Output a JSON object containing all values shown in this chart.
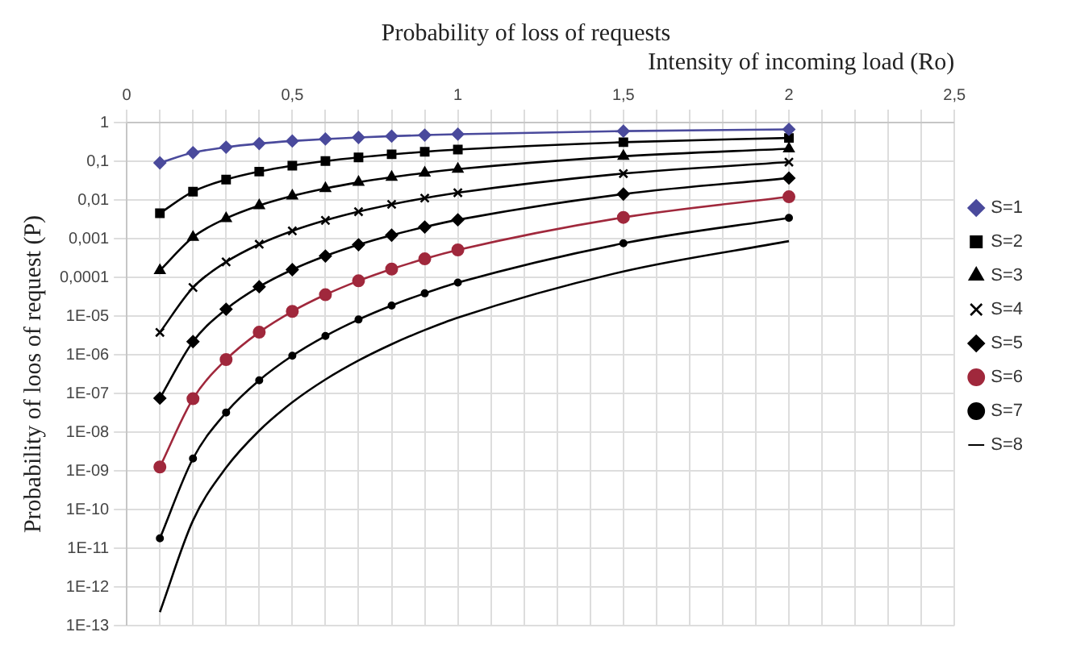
{
  "chart_data": {
    "type": "line",
    "title": "Probability of loss of requests",
    "xlabel": "Intensity of incoming load (Ro)",
    "ylabel": "Probability of loos of request (P)",
    "x": [
      0.1,
      0.2,
      0.3,
      0.4,
      0.5,
      0.6,
      0.7,
      0.8,
      0.9,
      1,
      1.5,
      2
    ],
    "series": [
      {
        "name": "S=1",
        "color": "#4a4a9c",
        "marker": "diamond",
        "values": [
          0.0909,
          0.1667,
          0.2308,
          0.2857,
          0.3333,
          0.375,
          0.4118,
          0.4444,
          0.4737,
          0.5,
          0.6,
          0.6667
        ]
      },
      {
        "name": "S=2",
        "color": "#000000",
        "marker": "square",
        "values": [
          0.004525,
          0.01639,
          0.03346,
          0.05405,
          0.07692,
          0.1011,
          0.126,
          0.1509,
          0.1757,
          0.2,
          0.3103,
          0.4
        ]
      },
      {
        "name": "S=3",
        "color": "#000000",
        "marker": "triangle",
        "values": [
          0.0001508,
          0.001092,
          0.003335,
          0.007156,
          0.01266,
          0.01982,
          0.02856,
          0.03869,
          0.05007,
          0.0625,
          0.1343,
          0.2105
        ]
      },
      {
        "name": "S=4",
        "color": "#000000",
        "marker": "cross",
        "values": [
          3.77e-06,
          5.46e-05,
          0.0002501,
          0.0007151,
          0.00158,
          0.002964,
          0.004973,
          0.007679,
          0.01114,
          0.01538,
          0.04796,
          0.09524
        ]
      },
      {
        "name": "S=5",
        "color": "#000000",
        "marker": "diamond",
        "values": [
          7.54e-08,
          2.184e-06,
          1.5e-05,
          5.72e-05,
          0.000158,
          0.0003556,
          0.0006957,
          0.001227,
          0.002001,
          0.003067,
          0.01418,
          0.0367
        ]
      },
      {
        "name": "S=6",
        "color": "#a0283c",
        "marker": "circle",
        "values": [
          1.257e-09,
          7.28e-08,
          7.5e-07,
          3.813e-06,
          1.317e-05,
          3.556e-05,
          8.116e-05,
          0.0001636,
          0.0003001,
          0.0005109,
          0.003533,
          0.01209
        ]
      },
      {
        "name": "S=7",
        "color": "#000000",
        "marker": "circle",
        "values": [
          1.795e-11,
          2.08e-09,
          3.215e-08,
          2.179e-07,
          9.4e-07,
          3.048e-06,
          8.115e-06,
          1.87e-05,
          3.858e-05,
          7.298e-05,
          0.0007565,
          0.003441
        ]
      },
      {
        "name": "S=8",
        "color": "#000000",
        "marker": "none",
        "values": [
          2.24e-13,
          5.2e-11,
          1.206e-09,
          1.09e-08,
          5.88e-08,
          2.286e-07,
          7.1e-07,
          1.87e-06,
          4.34e-06,
          9.12e-06,
          0.0001418,
          0.00086
        ]
      }
    ],
    "xlim": [
      0,
      2.5
    ],
    "xticks": [
      0,
      {
        "value": 0.1,
        "label": null
      },
      {
        "value": 0.2,
        "label": null
      },
      {
        "value": 0.3,
        "label": null
      },
      {
        "value": 0.4,
        "label": null
      },
      {
        "value": 0.5,
        "label": "0,5"
      },
      {
        "value": 0.6,
        "label": null
      },
      {
        "value": 0.7,
        "label": null
      },
      {
        "value": 0.8,
        "label": null
      },
      {
        "value": 0.9,
        "label": null
      },
      1,
      {
        "value": 1.1,
        "label": null
      },
      {
        "value": 1.2,
        "label": null
      },
      {
        "value": 1.3,
        "label": null
      },
      {
        "value": 1.4,
        "label": null
      },
      {
        "value": 1.5,
        "label": "1,5"
      },
      {
        "value": 1.6,
        "label": null
      },
      {
        "value": 1.7,
        "label": null
      },
      {
        "value": 1.8,
        "label": null
      },
      {
        "value": 1.9,
        "label": null
      },
      2,
      {
        "value": 2.1,
        "label": null
      },
      {
        "value": 2.2,
        "label": null
      },
      {
        "value": 2.3,
        "label": null
      },
      {
        "value": 2.4,
        "label": null
      },
      {
        "value": 2.5,
        "label": "2,5"
      }
    ],
    "ylim": [
      1e-13,
      1
    ],
    "yticks": [
      {
        "value": 1e-13,
        "label": "1E-13"
      },
      {
        "value": 1e-12,
        "label": "1E-12"
      },
      {
        "value": 1e-11,
        "label": "1E-11"
      },
      {
        "value": 1e-10,
        "label": "1E-10"
      },
      {
        "value": 1e-09,
        "label": "1E-09"
      },
      {
        "value": 1e-08,
        "label": "1E-08"
      },
      {
        "value": 1e-07,
        "label": "1E-07"
      },
      {
        "value": 1e-06,
        "label": "1E-06"
      },
      {
        "value": 1e-05,
        "label": "1E-05"
      },
      {
        "value": 0.0001,
        "label": "0,0001"
      },
      {
        "value": 0.001,
        "label": "0,001"
      },
      {
        "value": 0.01,
        "label": "0,01"
      },
      {
        "value": 0.1,
        "label": "0,1"
      },
      1
    ],
    "log": "y",
    "grid": true,
    "legend": "right",
    "line_style": "solid"
  }
}
